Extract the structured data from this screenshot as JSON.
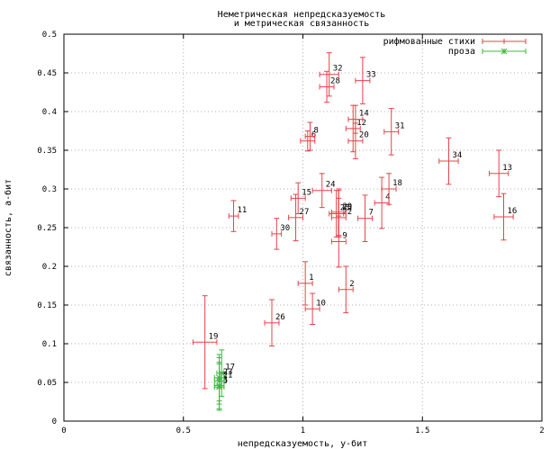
{
  "chart_data": {
    "type": "scatter",
    "title": [
      "Неметрическая непредсказуемость",
      "и метрическая связанность"
    ],
    "xlabel": "непредсказуемость, у-бит",
    "ylabel": "связанность, а-бит",
    "xlim": [
      0,
      2
    ],
    "ylim": [
      0,
      0.5
    ],
    "xticks": [
      0,
      0.5,
      1,
      1.5,
      2
    ],
    "xtick_labels": [
      "0",
      "0.5",
      "1",
      "1.5",
      "2"
    ],
    "yticks": [
      0,
      0.05,
      0.1,
      0.15,
      0.2,
      0.25,
      0.3,
      0.35,
      0.4,
      0.45,
      0.5
    ],
    "ytick_labels": [
      "0",
      "0.05",
      "0.1",
      "0.15",
      "0.2",
      "0.25",
      "0.3",
      "0.35",
      "0.4",
      "0.45",
      "0.5"
    ],
    "grid": true,
    "legend_position": "top-right",
    "series": [
      {
        "name": "рифмованные стихи",
        "color": "#e8424a",
        "marker": "plus",
        "points": [
          {
            "label": "1",
            "x": 1.01,
            "y": 0.178,
            "xerr": 0.03,
            "yerr": 0.028
          },
          {
            "label": "2",
            "x": 1.18,
            "y": 0.17,
            "xerr": 0.03,
            "yerr": 0.03
          },
          {
            "label": "4",
            "x": 1.33,
            "y": 0.282,
            "xerr": 0.03,
            "yerr": 0.033
          },
          {
            "label": "6",
            "x": 1.02,
            "y": 0.362,
            "xerr": 0.03,
            "yerr": 0.013
          },
          {
            "label": "7",
            "x": 1.26,
            "y": 0.262,
            "xerr": 0.03,
            "yerr": 0.03
          },
          {
            "label": "8",
            "x": 1.03,
            "y": 0.368,
            "xerr": 0.02,
            "yerr": 0.018
          },
          {
            "label": "9",
            "x": 1.15,
            "y": 0.232,
            "xerr": 0.03,
            "yerr": 0.033
          },
          {
            "label": "10",
            "x": 1.04,
            "y": 0.145,
            "xerr": 0.03,
            "yerr": 0.02
          },
          {
            "label": "11",
            "x": 0.71,
            "y": 0.265,
            "xerr": 0.02,
            "yerr": 0.02
          },
          {
            "label": "12",
            "x": 1.21,
            "y": 0.378,
            "xerr": 0.03,
            "yerr": 0.03
          },
          {
            "label": "13",
            "x": 1.82,
            "y": 0.32,
            "xerr": 0.04,
            "yerr": 0.03
          },
          {
            "label": "14",
            "x": 1.22,
            "y": 0.39,
            "xerr": 0.03,
            "yerr": 0.018
          },
          {
            "label": "15",
            "x": 0.98,
            "y": 0.288,
            "xerr": 0.03,
            "yerr": 0.02
          },
          {
            "label": "16",
            "x": 1.84,
            "y": 0.264,
            "xerr": 0.04,
            "yerr": 0.03
          },
          {
            "label": "18",
            "x": 1.36,
            "y": 0.3,
            "xerr": 0.03,
            "yerr": 0.02
          },
          {
            "label": "19",
            "x": 0.59,
            "y": 0.102,
            "xerr": 0.05,
            "yerr": 0.06
          },
          {
            "label": "20",
            "x": 1.22,
            "y": 0.362,
            "xerr": 0.03,
            "yerr": 0.023
          },
          {
            "label": "22",
            "x": 1.15,
            "y": 0.263,
            "xerr": 0.03,
            "yerr": 0.025
          },
          {
            "label": "23",
            "x": 1.14,
            "y": 0.268,
            "xerr": 0.03,
            "yerr": 0.03
          },
          {
            "label": "24",
            "x": 1.08,
            "y": 0.298,
            "xerr": 0.04,
            "yerr": 0.022
          },
          {
            "label": "25",
            "x": 1.15,
            "y": 0.268,
            "xerr": 0.03,
            "yerr": 0.03
          },
          {
            "label": "26",
            "x": 0.87,
            "y": 0.127,
            "xerr": 0.03,
            "yerr": 0.03
          },
          {
            "label": "27",
            "x": 0.97,
            "y": 0.263,
            "xerr": 0.03,
            "yerr": 0.03
          },
          {
            "label": "28",
            "x": 1.1,
            "y": 0.432,
            "xerr": 0.03,
            "yerr": 0.02
          },
          {
            "label": "29",
            "x": 1.15,
            "y": 0.27,
            "xerr": 0.03,
            "yerr": 0.03
          },
          {
            "label": "30",
            "x": 0.89,
            "y": 0.242,
            "xerr": 0.02,
            "yerr": 0.02
          },
          {
            "label": "31",
            "x": 1.37,
            "y": 0.374,
            "xerr": 0.03,
            "yerr": 0.03
          },
          {
            "label": "32",
            "x": 1.11,
            "y": 0.448,
            "xerr": 0.04,
            "yerr": 0.028
          },
          {
            "label": "33",
            "x": 1.25,
            "y": 0.44,
            "xerr": 0.03,
            "yerr": 0.03
          },
          {
            "label": "34",
            "x": 1.61,
            "y": 0.336,
            "xerr": 0.04,
            "yerr": 0.03
          }
        ]
      },
      {
        "name": "проза",
        "color": "#3cb83c",
        "marker": "cross",
        "points": [
          {
            "label": "3",
            "x": 0.65,
            "y": 0.046,
            "xerr": 0.02,
            "yerr": 0.03
          },
          {
            "label": "5",
            "x": 0.65,
            "y": 0.044,
            "xerr": 0.02,
            "yerr": 0.03
          },
          {
            "label": "17",
            "x": 0.66,
            "y": 0.062,
            "xerr": 0.02,
            "yerr": 0.03
          },
          {
            "label": "21",
            "x": 0.65,
            "y": 0.052,
            "xerr": 0.02,
            "yerr": 0.03
          },
          {
            "label": "23",
            "x": 0.65,
            "y": 0.056,
            "xerr": 0.02,
            "yerr": 0.03
          }
        ]
      }
    ]
  }
}
